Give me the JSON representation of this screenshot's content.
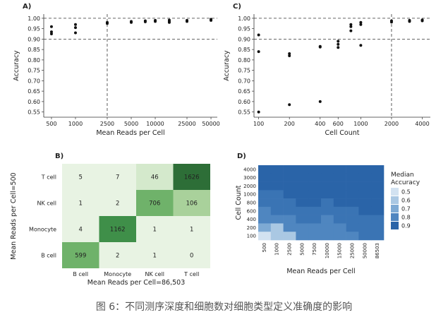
{
  "caption": "图 6：不同测序深度和细胞数对细胞类型定义准确度的影响",
  "colors": {
    "green_scale": [
      "#e8f3e3",
      "#d4e9cc",
      "#a9d19b",
      "#6fb26a",
      "#3f8f49",
      "#2d6e37"
    ],
    "blue_scale": [
      "#d2e2f1",
      "#aac8e3",
      "#7eaad4",
      "#4f86c0",
      "#2a64a8"
    ]
  },
  "chart_data": [
    {
      "id": "A",
      "panel_label": "A)",
      "type": "scatter",
      "xlabel": "Mean Reads per Cell",
      "ylabel": "Accuracy",
      "x_scale": "log",
      "x_ticks": [
        500,
        1000,
        2500,
        5000,
        10000,
        25000,
        50000
      ],
      "x_tick_labels": [
        "500",
        "1000",
        "2500",
        "5000",
        "10000",
        "25000",
        "50000"
      ],
      "xlim": [
        400,
        60000
      ],
      "y_ticks": [
        0.55,
        0.6,
        0.65,
        0.7,
        0.75,
        0.8,
        0.85,
        0.9,
        0.95,
        1.0
      ],
      "y_tick_labels": [
        "0.55",
        "0.60",
        "0.65",
        "0.70",
        "0.75",
        "0.80",
        "0.85",
        "0.90",
        "0.95",
        "1.00"
      ],
      "ylim": [
        0.525,
        1.02
      ],
      "hlines": [
        1.0,
        0.9
      ],
      "vline": 2500,
      "points": [
        {
          "x": 500,
          "y": 0.96
        },
        {
          "x": 500,
          "y": 0.935
        },
        {
          "x": 500,
          "y": 0.925
        },
        {
          "x": 1000,
          "y": 0.97
        },
        {
          "x": 1000,
          "y": 0.955
        },
        {
          "x": 1000,
          "y": 0.93
        },
        {
          "x": 2500,
          "y": 0.98
        },
        {
          "x": 2500,
          "y": 0.975
        },
        {
          "x": 5000,
          "y": 0.985
        },
        {
          "x": 5000,
          "y": 0.98
        },
        {
          "x": 7500,
          "y": 0.988
        },
        {
          "x": 7500,
          "y": 0.983
        },
        {
          "x": 10000,
          "y": 0.99
        },
        {
          "x": 10000,
          "y": 0.985
        },
        {
          "x": 15000,
          "y": 0.991
        },
        {
          "x": 15000,
          "y": 0.985
        },
        {
          "x": 15000,
          "y": 0.98
        },
        {
          "x": 25000,
          "y": 0.99
        },
        {
          "x": 25000,
          "y": 0.985
        },
        {
          "x": 50000,
          "y": 0.995
        },
        {
          "x": 50000,
          "y": 0.99
        }
      ]
    },
    {
      "id": "C",
      "panel_label": "C)",
      "type": "scatter",
      "xlabel": "Cell Count",
      "ylabel": "Accuracy",
      "x_scale": "log",
      "x_ticks": [
        100,
        200,
        400,
        600,
        1000,
        2000,
        4000
      ],
      "x_tick_labels": [
        "100",
        "200",
        "400",
        "600",
        "1000",
        "2000",
        "4000"
      ],
      "xlim": [
        90,
        4800
      ],
      "y_ticks": [
        0.55,
        0.6,
        0.65,
        0.7,
        0.75,
        0.8,
        0.85,
        0.9,
        0.95,
        1.0
      ],
      "y_tick_labels": [
        "0.55",
        "0.60",
        "0.65",
        "0.70",
        "0.75",
        "0.80",
        "0.85",
        "0.90",
        "0.95",
        "1.00"
      ],
      "ylim": [
        0.525,
        1.02
      ],
      "hlines": [
        1.0,
        0.9
      ],
      "vline": 2000,
      "points": [
        {
          "x": 100,
          "y": 0.92
        },
        {
          "x": 100,
          "y": 0.84
        },
        {
          "x": 100,
          "y": 0.55
        },
        {
          "x": 200,
          "y": 0.83
        },
        {
          "x": 200,
          "y": 0.82
        },
        {
          "x": 200,
          "y": 0.585
        },
        {
          "x": 400,
          "y": 0.865
        },
        {
          "x": 400,
          "y": 0.862
        },
        {
          "x": 400,
          "y": 0.6
        },
        {
          "x": 600,
          "y": 0.89
        },
        {
          "x": 600,
          "y": 0.875
        },
        {
          "x": 600,
          "y": 0.86
        },
        {
          "x": 800,
          "y": 0.97
        },
        {
          "x": 800,
          "y": 0.96
        },
        {
          "x": 800,
          "y": 0.94
        },
        {
          "x": 1000,
          "y": 0.98
        },
        {
          "x": 1000,
          "y": 0.97
        },
        {
          "x": 1000,
          "y": 0.87
        },
        {
          "x": 2000,
          "y": 0.988
        },
        {
          "x": 2000,
          "y": 0.982
        },
        {
          "x": 3000,
          "y": 0.99
        },
        {
          "x": 3000,
          "y": 0.985
        },
        {
          "x": 4000,
          "y": 0.992
        },
        {
          "x": 4000,
          "y": 0.988
        }
      ]
    },
    {
      "id": "B",
      "panel_label": "B)",
      "type": "heatmap",
      "xlabel": "Mean Reads per Cell=86,503",
      "ylabel": "Mean Reads per Cell=500",
      "x_categories": [
        "B cell",
        "Monocyte",
        "NK cell",
        "T cell"
      ],
      "y_categories": [
        "T cell",
        "NK cell",
        "Monocyte",
        "B cell"
      ],
      "values": [
        [
          5,
          7,
          46,
          1626
        ],
        [
          1,
          2,
          706,
          106
        ],
        [
          4,
          1162,
          1,
          1
        ],
        [
          599,
          2,
          1,
          0
        ]
      ]
    },
    {
      "id": "D",
      "panel_label": "D)",
      "type": "heatmap",
      "xlabel": "Mean Reads per Cell",
      "ylabel": "Cell Count",
      "x_categories": [
        "500",
        "1000",
        "2500",
        "5000",
        "7500",
        "10000",
        "15000",
        "25000",
        "50000",
        "86503"
      ],
      "y_categories": [
        "4000",
        "3000",
        "2000",
        "1000",
        "800",
        "600",
        "400",
        "200",
        "100"
      ],
      "legend_title": "Median Accuracy",
      "legend_labels": [
        "0.5",
        "0.6",
        "0.7",
        "0.8",
        "0.9"
      ],
      "values": [
        [
          0.94,
          0.95,
          0.96,
          0.96,
          0.96,
          0.97,
          0.97,
          0.97,
          0.97,
          0.97
        ],
        [
          0.94,
          0.95,
          0.96,
          0.96,
          0.96,
          0.96,
          0.97,
          0.97,
          0.97,
          0.97
        ],
        [
          0.93,
          0.94,
          0.95,
          0.96,
          0.96,
          0.96,
          0.96,
          0.96,
          0.97,
          0.97
        ],
        [
          0.9,
          0.92,
          0.93,
          0.94,
          0.94,
          0.95,
          0.95,
          0.95,
          0.96,
          0.96
        ],
        [
          0.88,
          0.91,
          0.92,
          0.93,
          0.93,
          0.92,
          0.93,
          0.94,
          0.95,
          0.95
        ],
        [
          0.85,
          0.88,
          0.9,
          0.91,
          0.9,
          0.89,
          0.91,
          0.92,
          0.93,
          0.93
        ],
        [
          0.8,
          0.84,
          0.87,
          0.89,
          0.88,
          0.86,
          0.88,
          0.9,
          0.91,
          0.91
        ],
        [
          0.72,
          0.62,
          0.8,
          0.85,
          0.86,
          0.84,
          0.87,
          0.88,
          0.89,
          0.9
        ],
        [
          0.55,
          0.6,
          0.65,
          0.8,
          0.84,
          0.85,
          0.86,
          0.87,
          0.88,
          0.89
        ]
      ]
    }
  ]
}
